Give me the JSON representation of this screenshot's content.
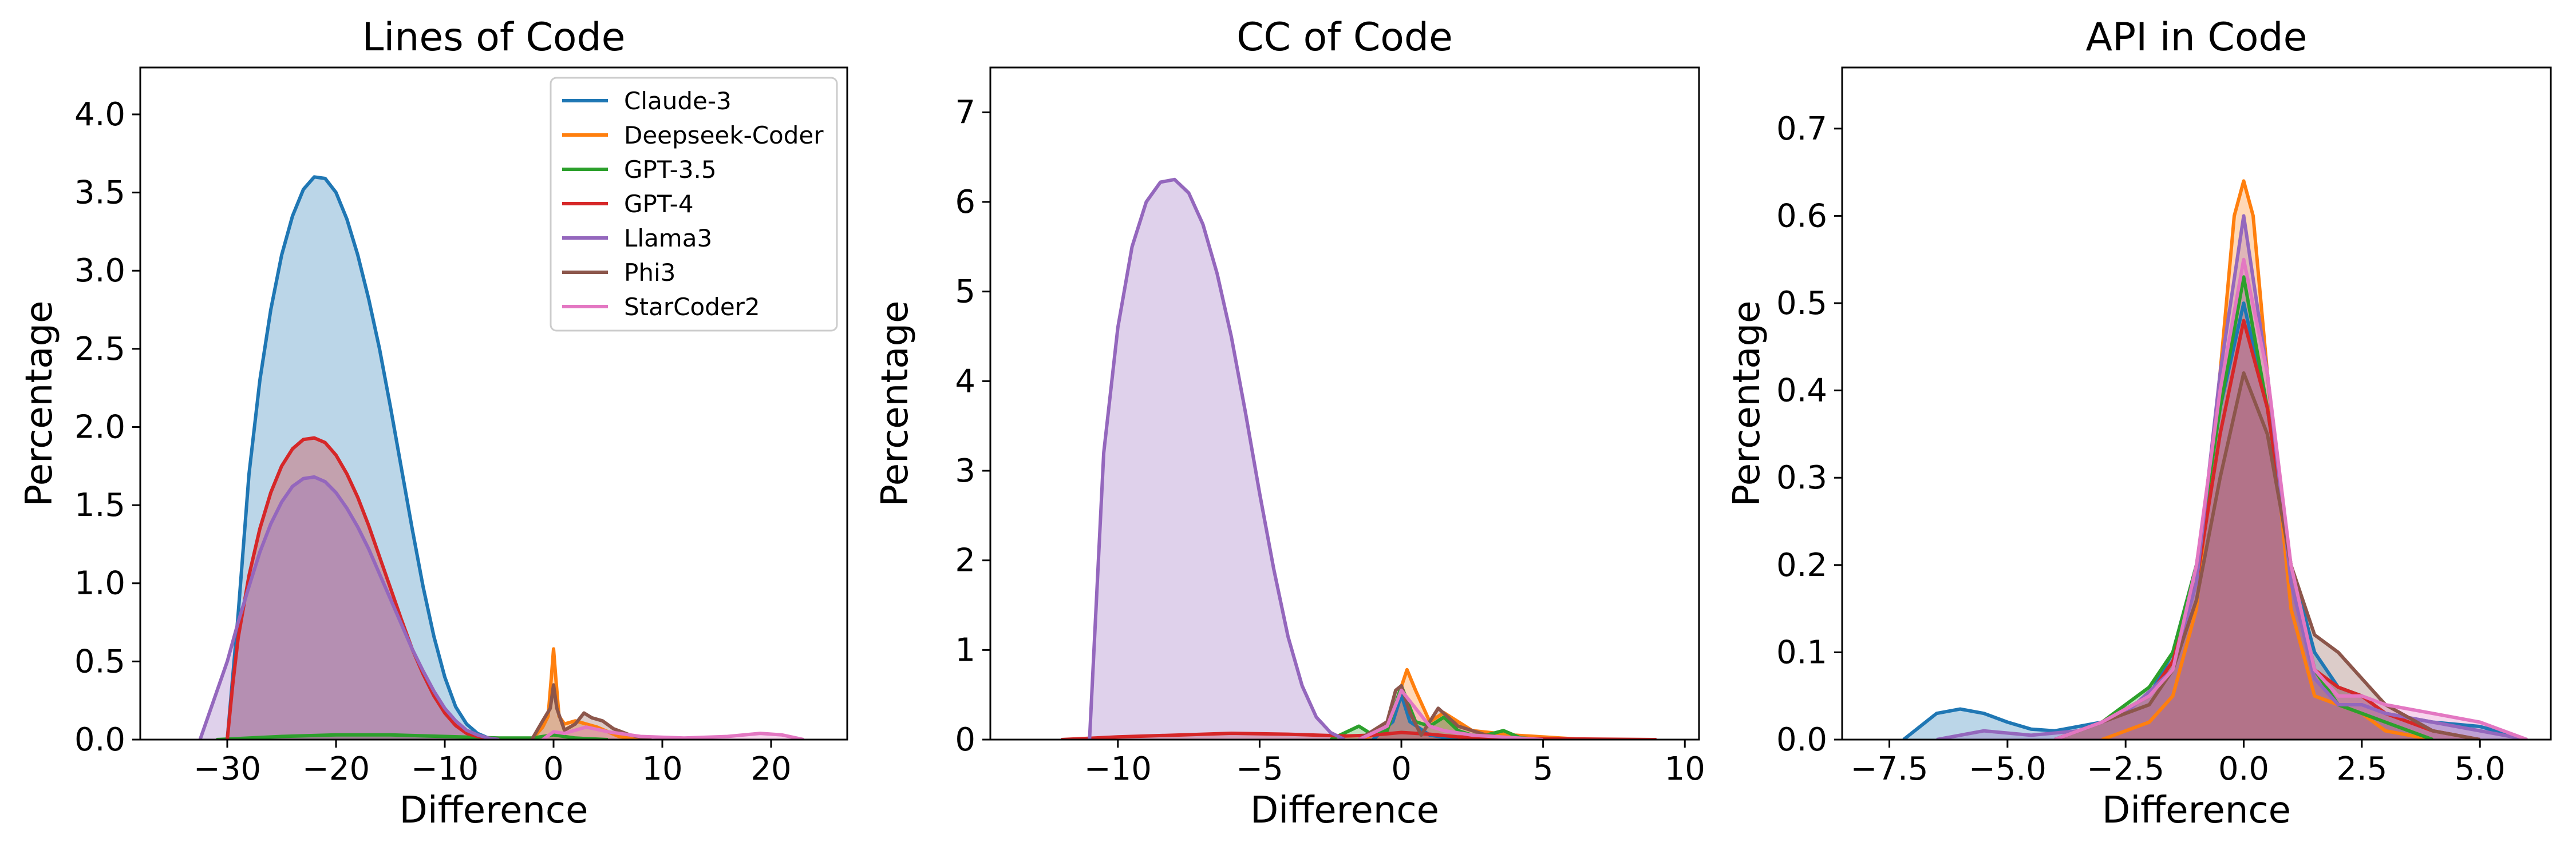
{
  "chart_data": [
    {
      "type": "area",
      "title": "Lines of Code",
      "xlabel": "Difference",
      "ylabel": "Percentage",
      "xlim": [
        -38,
        27
      ],
      "ylim": [
        0,
        4.3
      ],
      "xticks": [
        -30,
        -20,
        -10,
        0,
        10,
        20
      ],
      "xtick_labels": [
        "−30",
        "−20",
        "−10",
        "0",
        "10",
        "20"
      ],
      "yticks": [
        0,
        0.5,
        1,
        1.5,
        2,
        2.5,
        3,
        3.5,
        4
      ],
      "ytick_labels": [
        "0.0",
        "0.5",
        "1.0",
        "1.5",
        "2.0",
        "2.5",
        "3.0",
        "3.5",
        "4.0"
      ],
      "legend": "top-right",
      "series": [
        {
          "name": "Claude-3",
          "color": "#1f77b4",
          "x": [
            -30,
            -29,
            -28,
            -27,
            -26,
            -25,
            -24,
            -23,
            -22,
            -21,
            -20,
            -19,
            -18,
            -17,
            -16,
            -15,
            -14,
            -13,
            -12,
            -11,
            -10,
            -9,
            -8,
            -7,
            -6,
            -5
          ],
          "y": [
            0,
            0.8,
            1.7,
            2.3,
            2.75,
            3.1,
            3.35,
            3.52,
            3.6,
            3.59,
            3.5,
            3.33,
            3.1,
            2.82,
            2.5,
            2.13,
            1.74,
            1.35,
            0.98,
            0.66,
            0.4,
            0.21,
            0.1,
            0.04,
            0.01,
            0
          ]
        },
        {
          "name": "Deepseek-Coder",
          "color": "#ff7f0e",
          "x": [
            -2,
            -1,
            -0.5,
            -0.2,
            0,
            0.2,
            0.5,
            1,
            2,
            3,
            4,
            5,
            6,
            8
          ],
          "y": [
            0,
            0.08,
            0.15,
            0.4,
            0.58,
            0.4,
            0.15,
            0.1,
            0.12,
            0.1,
            0.08,
            0.05,
            0.02,
            0
          ]
        },
        {
          "name": "GPT-3.5",
          "color": "#2ca02c",
          "x": [
            -31,
            -25,
            -20,
            -15,
            -10,
            -5,
            -2,
            0,
            2,
            5
          ],
          "y": [
            0,
            0.02,
            0.03,
            0.03,
            0.02,
            0.01,
            0.01,
            0.03,
            0.01,
            0
          ]
        },
        {
          "name": "GPT-4",
          "color": "#d62728",
          "x": [
            -30,
            -29.5,
            -29,
            -28,
            -27,
            -26,
            -25,
            -24,
            -23,
            -22,
            -21,
            -20,
            -19,
            -18,
            -17,
            -16,
            -15,
            -14,
            -13,
            -12,
            -11,
            -10,
            -9,
            -8,
            -7,
            -6,
            -5
          ],
          "y": [
            0,
            0.35,
            0.65,
            1.05,
            1.35,
            1.58,
            1.75,
            1.86,
            1.92,
            1.93,
            1.9,
            1.82,
            1.7,
            1.55,
            1.37,
            1.17,
            0.97,
            0.77,
            0.58,
            0.42,
            0.28,
            0.17,
            0.09,
            0.04,
            0.02,
            0.01,
            0
          ]
        },
        {
          "name": "Llama3",
          "color": "#9467bd",
          "x": [
            -32.5,
            -31,
            -30,
            -29,
            -28,
            -27,
            -26,
            -25,
            -24,
            -23,
            -22,
            -21,
            -20,
            -19,
            -18,
            -17,
            -16,
            -15,
            -14,
            -13,
            -12,
            -11,
            -10,
            -9,
            -8,
            -7,
            -6,
            -5
          ],
          "y": [
            0,
            0.3,
            0.5,
            0.75,
            0.98,
            1.2,
            1.38,
            1.52,
            1.62,
            1.67,
            1.68,
            1.65,
            1.58,
            1.48,
            1.36,
            1.22,
            1.06,
            0.9,
            0.74,
            0.58,
            0.44,
            0.31,
            0.2,
            0.12,
            0.06,
            0.03,
            0.01,
            0
          ]
        },
        {
          "name": "Phi3",
          "color": "#8c564b",
          "x": [
            -2,
            -1,
            -0.3,
            0,
            0.3,
            1,
            2,
            2.8,
            3.5,
            4.5,
            5.5,
            7,
            9
          ],
          "y": [
            0,
            0.12,
            0.2,
            0.35,
            0.2,
            0.06,
            0.1,
            0.17,
            0.14,
            0.12,
            0.07,
            0.03,
            0
          ]
        },
        {
          "name": "StarCoder2",
          "color": "#e377c2",
          "x": [
            -1,
            0,
            1,
            3,
            5,
            8,
            12,
            16,
            19,
            21,
            23
          ],
          "y": [
            0,
            0.05,
            0.04,
            0.08,
            0.05,
            0.02,
            0.01,
            0.02,
            0.04,
            0.03,
            0
          ]
        }
      ]
    },
    {
      "type": "area",
      "title": "CC of Code",
      "xlabel": "Difference",
      "ylabel": "Percentage",
      "xlim": [
        -14.5,
        10.5
      ],
      "ylim": [
        0,
        7.5
      ],
      "xticks": [
        -10,
        -5,
        0,
        5,
        10
      ],
      "xtick_labels": [
        "−10",
        "−5",
        "0",
        "5",
        "10"
      ],
      "yticks": [
        0,
        1,
        2,
        3,
        4,
        5,
        6,
        7
      ],
      "ytick_labels": [
        "0",
        "1",
        "2",
        "3",
        "4",
        "5",
        "6",
        "7"
      ],
      "series": [
        {
          "name": "Claude-3",
          "color": "#1f77b4",
          "x": [
            -1,
            -0.3,
            0,
            0.3,
            1,
            2
          ],
          "y": [
            0,
            0.2,
            0.5,
            0.2,
            0.05,
            0
          ]
        },
        {
          "name": "Deepseek-Coder",
          "color": "#ff7f0e",
          "x": [
            -1.5,
            -0.5,
            -0.2,
            0.2,
            0.5,
            1,
            1.5,
            2.5,
            4,
            6.5
          ],
          "y": [
            0,
            0.1,
            0.4,
            0.78,
            0.55,
            0.2,
            0.3,
            0.1,
            0.05,
            0
          ]
        },
        {
          "name": "GPT-3.5",
          "color": "#2ca02c",
          "x": [
            -2.5,
            -1.5,
            -1,
            -0.5,
            0,
            0.5,
            1,
            1.5,
            2,
            2.5,
            3,
            3.6,
            4.2,
            5
          ],
          "y": [
            0,
            0.15,
            0.05,
            0.1,
            0.6,
            0.2,
            0.15,
            0.25,
            0.1,
            0.05,
            0.05,
            0.1,
            0.02,
            0
          ]
        },
        {
          "name": "GPT-4",
          "color": "#d62728",
          "x": [
            -12,
            -10,
            -8,
            -6,
            -4,
            -2,
            -1,
            0,
            1,
            2,
            3,
            5,
            7,
            9
          ],
          "y": [
            0,
            0.03,
            0.05,
            0.07,
            0.06,
            0.04,
            0.05,
            0.08,
            0.06,
            0.03,
            0.02,
            0.01,
            0.005,
            0
          ]
        },
        {
          "name": "Llama3",
          "color": "#9467bd",
          "x": [
            -11,
            -10.5,
            -10,
            -9.5,
            -9,
            -8.5,
            -8,
            -7.5,
            -7,
            -6.5,
            -6,
            -5.5,
            -5,
            -4.5,
            -4,
            -3.5,
            -3,
            -2.5,
            -2
          ],
          "y": [
            0,
            3.2,
            4.6,
            5.5,
            6.0,
            6.22,
            6.25,
            6.1,
            5.75,
            5.2,
            4.5,
            3.65,
            2.75,
            1.9,
            1.15,
            0.6,
            0.25,
            0.08,
            0
          ]
        },
        {
          "name": "Phi3",
          "color": "#8c564b",
          "x": [
            -1.5,
            -0.5,
            -0.2,
            0,
            0.3,
            0.7,
            1.3,
            2,
            3,
            4
          ],
          "y": [
            0,
            0.2,
            0.55,
            0.6,
            0.3,
            0.05,
            0.35,
            0.15,
            0.05,
            0
          ]
        },
        {
          "name": "StarCoder2",
          "color": "#e377c2",
          "x": [
            -1.5,
            -0.5,
            0,
            0.5,
            1,
            1.5,
            2.5,
            4,
            5
          ],
          "y": [
            0,
            0.15,
            0.55,
            0.35,
            0.15,
            0.1,
            0.05,
            0.02,
            0
          ]
        }
      ]
    },
    {
      "type": "area",
      "title": "API in Code",
      "xlabel": "Difference",
      "ylabel": "Percentage",
      "xlim": [
        -8.5,
        6.5
      ],
      "ylim": [
        0,
        0.77
      ],
      "xticks": [
        -7.5,
        -5,
        -2.5,
        0,
        2.5,
        5
      ],
      "xtick_labels": [
        "−7.5",
        "−5.0",
        "−2.5",
        "0.0",
        "2.5",
        "5.0"
      ],
      "yticks": [
        0,
        0.1,
        0.2,
        0.3,
        0.4,
        0.5,
        0.6,
        0.7
      ],
      "ytick_labels": [
        "0.0",
        "0.1",
        "0.2",
        "0.3",
        "0.4",
        "0.5",
        "0.6",
        "0.7"
      ],
      "series": [
        {
          "name": "Claude-3",
          "color": "#1f77b4",
          "x": [
            -7.2,
            -6.5,
            -6,
            -5.5,
            -5,
            -4.5,
            -4,
            -3,
            -2,
            -1.5,
            -1,
            -0.5,
            0,
            0.5,
            1,
            1.5,
            2,
            2.5,
            3,
            4,
            5,
            6
          ],
          "y": [
            0,
            0.03,
            0.035,
            0.03,
            0.02,
            0.012,
            0.01,
            0.02,
            0.05,
            0.1,
            0.2,
            0.38,
            0.5,
            0.38,
            0.2,
            0.1,
            0.06,
            0.05,
            0.03,
            0.02,
            0.015,
            0
          ]
        },
        {
          "name": "Deepseek-Coder",
          "color": "#ff7f0e",
          "x": [
            -3,
            -2,
            -1.5,
            -1,
            -0.5,
            -0.2,
            0,
            0.2,
            0.5,
            1,
            1.5,
            2,
            2.5,
            3,
            4
          ],
          "y": [
            0,
            0.02,
            0.05,
            0.15,
            0.42,
            0.6,
            0.64,
            0.6,
            0.42,
            0.15,
            0.05,
            0.04,
            0.03,
            0.01,
            0
          ]
        },
        {
          "name": "GPT-3.5",
          "color": "#2ca02c",
          "x": [
            -4,
            -3,
            -2,
            -1.5,
            -1,
            -0.5,
            0,
            0.5,
            1,
            1.5,
            2,
            2.5,
            3,
            4
          ],
          "y": [
            0,
            0.02,
            0.06,
            0.1,
            0.2,
            0.38,
            0.53,
            0.38,
            0.2,
            0.08,
            0.04,
            0.03,
            0.02,
            0
          ]
        },
        {
          "name": "GPT-4",
          "color": "#d62728",
          "x": [
            -4,
            -3,
            -2,
            -1.5,
            -1,
            -0.5,
            0,
            0.5,
            1,
            1.5,
            2,
            2.5,
            3,
            4,
            5
          ],
          "y": [
            0,
            0.02,
            0.05,
            0.09,
            0.18,
            0.35,
            0.48,
            0.38,
            0.2,
            0.08,
            0.06,
            0.05,
            0.03,
            0.01,
            0
          ]
        },
        {
          "name": "Llama3",
          "color": "#9467bd",
          "x": [
            -6.5,
            -5.5,
            -4.5,
            -3.5,
            -2.5,
            -1.5,
            -1,
            -0.5,
            0,
            0.5,
            1,
            1.5,
            2,
            2.5,
            3,
            4,
            5,
            6
          ],
          "y": [
            0,
            0.01,
            0.005,
            0.01,
            0.03,
            0.08,
            0.18,
            0.42,
            0.6,
            0.42,
            0.18,
            0.07,
            0.04,
            0.04,
            0.03,
            0.02,
            0.01,
            0
          ]
        },
        {
          "name": "Phi3",
          "color": "#8c564b",
          "x": [
            -4,
            -3,
            -2,
            -1.5,
            -1,
            -0.5,
            0,
            0.5,
            1,
            1.5,
            2,
            2.5,
            3,
            4,
            5
          ],
          "y": [
            0,
            0.02,
            0.04,
            0.08,
            0.16,
            0.3,
            0.42,
            0.35,
            0.2,
            0.12,
            0.1,
            0.07,
            0.04,
            0.01,
            0
          ]
        },
        {
          "name": "StarCoder2",
          "color": "#e377c2",
          "x": [
            -4,
            -3,
            -2,
            -1.5,
            -1,
            -0.5,
            0,
            0.5,
            1,
            1.5,
            2,
            2.5,
            3,
            4,
            5,
            6
          ],
          "y": [
            0,
            0.02,
            0.05,
            0.08,
            0.2,
            0.4,
            0.55,
            0.42,
            0.2,
            0.08,
            0.05,
            0.05,
            0.04,
            0.03,
            0.02,
            0
          ]
        }
      ]
    }
  ]
}
